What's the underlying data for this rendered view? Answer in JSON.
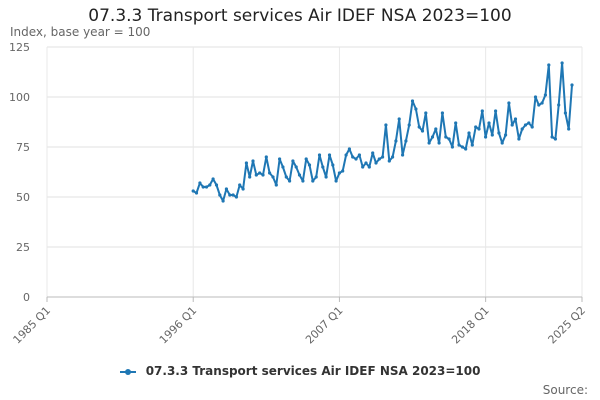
{
  "chart_data": {
    "type": "line",
    "title": "07.3.3 Transport services Air IDEF NSA 2023=100",
    "ylabel": "Index, base year = 100",
    "xlabel": "",
    "ylim": [
      0,
      125
    ],
    "yticks": [
      0,
      25,
      50,
      75,
      100,
      125
    ],
    "xticks": [
      "1985 Q1",
      "1996 Q1",
      "2007 Q1",
      "2018 Q1",
      "2025 Q2"
    ],
    "x_tick_index": [
      0,
      44,
      88,
      132,
      161
    ],
    "grid": true,
    "legend_position": "bottom",
    "series": [
      {
        "name": "07.3.3 Transport services Air IDEF NSA 2023=100",
        "color": "#1f77b4",
        "start_index": 44,
        "values": [
          53,
          52,
          57,
          55,
          55,
          56,
          59,
          56,
          51,
          48,
          54,
          51,
          51,
          50,
          56,
          54,
          67,
          60,
          68,
          61,
          62,
          61,
          70,
          62,
          60,
          56,
          69,
          65,
          60,
          58,
          68,
          65,
          61,
          58,
          69,
          66,
          58,
          60,
          71,
          65,
          60,
          71,
          66,
          58,
          62,
          63,
          71,
          74,
          70,
          69,
          71,
          65,
          67,
          65,
          72,
          67,
          69,
          70,
          86,
          68,
          70,
          78,
          89,
          71,
          78,
          86,
          98,
          94,
          85,
          83,
          92,
          77,
          80,
          84,
          77,
          92,
          80,
          79,
          75,
          87,
          76,
          75,
          74,
          82,
          76,
          85,
          84,
          93,
          80,
          87,
          81,
          93,
          82,
          77,
          81,
          97,
          86,
          89,
          79,
          84,
          86,
          87,
          85,
          100,
          96,
          97,
          101,
          116,
          80,
          79,
          96,
          117,
          92,
          84,
          106
        ]
      }
    ]
  },
  "source_label": "Source:"
}
